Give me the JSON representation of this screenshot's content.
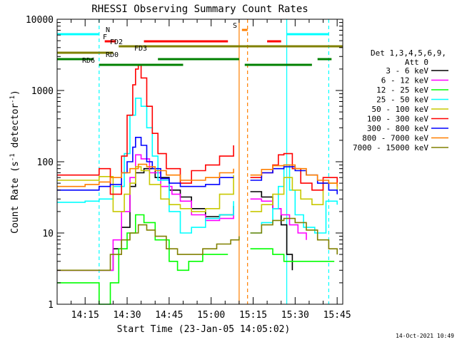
{
  "chart_data": {
    "type": "line",
    "title": "RHESSI Observing Summary Count Rates",
    "xlabel": "Start Time (23-Jan-05 14:05:02)",
    "ylabel": "Count Rate (s⁻¹ detector⁻¹)",
    "ylabel_parts": {
      "main": "Count Rate (s",
      "sup1": "-1",
      "mid": " detector",
      "sup2": "-1",
      "end": ")"
    },
    "yscale": "log",
    "xlim": [
      "14:05",
      "15:47"
    ],
    "ylim": [
      1,
      10000
    ],
    "x_ticks": [
      "14:15",
      "14:30",
      "14:45",
      "15:00",
      "15:15",
      "15:30",
      "15:45"
    ],
    "y_ticks": [
      "1",
      "10",
      "100",
      "1000",
      "10000"
    ],
    "legend_title": [
      "Det 1,3,4,5,6,9,",
      "Att 0"
    ],
    "legend_position": "right",
    "footer_date": "14-Oct-2021 10:49",
    "series": [
      {
        "name": "3 - 6 keV",
        "color": "#000000",
        "points": [
          [
            "14:05",
            3
          ],
          [
            "14:20",
            3
          ],
          [
            "14:25",
            6
          ],
          [
            "14:28",
            12
          ],
          [
            "14:31",
            45
          ],
          [
            "14:33",
            70
          ],
          [
            "14:36",
            80
          ],
          [
            "14:40",
            60
          ],
          [
            "14:45",
            40
          ],
          [
            "14:49",
            32
          ],
          [
            "14:53",
            22
          ],
          [
            "14:58",
            17
          ],
          [
            "15:03",
            18
          ],
          [
            "15:08",
            24
          ],
          [
            "15:12",
            null
          ],
          [
            "15:14",
            38
          ],
          [
            "15:18",
            32
          ],
          [
            "15:22",
            22
          ],
          [
            "15:25",
            13
          ],
          [
            "15:27",
            5
          ],
          [
            "15:29",
            3
          ],
          [
            "15:33",
            null
          ]
        ]
      },
      {
        "name": "6 - 12 keV",
        "color": "#ff00ff",
        "points": [
          [
            "14:05",
            3
          ],
          [
            "14:20",
            3
          ],
          [
            "14:25",
            8
          ],
          [
            "14:28",
            20
          ],
          [
            "14:31",
            60
          ],
          [
            "14:33",
            125
          ],
          [
            "14:35",
            110
          ],
          [
            "14:38",
            70
          ],
          [
            "14:42",
            45
          ],
          [
            "14:46",
            35
          ],
          [
            "14:49",
            28
          ],
          [
            "14:53",
            18
          ],
          [
            "14:58",
            15
          ],
          [
            "15:03",
            16
          ],
          [
            "15:08",
            22
          ],
          [
            "15:12",
            null
          ],
          [
            "15:14",
            30
          ],
          [
            "15:18",
            28
          ],
          [
            "15:22",
            22
          ],
          [
            "15:25",
            18
          ],
          [
            "15:28",
            13
          ],
          [
            "15:31",
            10
          ],
          [
            "15:34",
            8
          ],
          [
            "15:37",
            null
          ]
        ]
      },
      {
        "name": "12 - 25 keV",
        "color": "#00ff00",
        "points": [
          [
            "14:05",
            2
          ],
          [
            "14:20",
            1
          ],
          [
            "14:24",
            2
          ],
          [
            "14:27",
            6
          ],
          [
            "14:30",
            10
          ],
          [
            "14:33",
            18
          ],
          [
            "14:36",
            14
          ],
          [
            "14:40",
            8
          ],
          [
            "14:45",
            4
          ],
          [
            "14:48",
            3
          ],
          [
            "14:52",
            4
          ],
          [
            "14:57",
            5
          ],
          [
            "15:02",
            5
          ],
          [
            "15:06",
            5
          ],
          [
            "15:10",
            null
          ],
          [
            "15:14",
            6
          ],
          [
            "15:18",
            6
          ],
          [
            "15:22",
            5
          ],
          [
            "15:26",
            4
          ],
          [
            "15:30",
            4
          ],
          [
            "15:35",
            4
          ],
          [
            "15:40",
            4
          ],
          [
            "15:44",
            4
          ]
        ]
      },
      {
        "name": "25 - 50 keV",
        "color": "#00ffff",
        "points": [
          [
            "14:05",
            27
          ],
          [
            "14:15",
            28
          ],
          [
            "14:20",
            30
          ],
          [
            "14:25",
            45
          ],
          [
            "14:29",
            130
          ],
          [
            "14:31",
            450
          ],
          [
            "14:33",
            780
          ],
          [
            "14:35",
            600
          ],
          [
            "14:37",
            300
          ],
          [
            "14:39",
            120
          ],
          [
            "14:41",
            55
          ],
          [
            "14:45",
            20
          ],
          [
            "14:49",
            10
          ],
          [
            "14:53",
            12
          ],
          [
            "14:58",
            16
          ],
          [
            "15:03",
            18
          ],
          [
            "15:08",
            28
          ],
          [
            "15:11",
            null
          ],
          [
            "15:14",
            10
          ],
          [
            "15:18",
            14
          ],
          [
            "15:22",
            22
          ],
          [
            "15:24",
            45
          ],
          [
            "15:26",
            90
          ],
          [
            "15:28",
            40
          ],
          [
            "15:30",
            18
          ],
          [
            "15:33",
            12
          ],
          [
            "15:37",
            10
          ],
          [
            "15:41",
            28
          ],
          [
            "15:45",
            25
          ]
        ]
      },
      {
        "name": "50 - 100 keV",
        "color": "#c8c800",
        "points": [
          [
            "14:05",
            55
          ],
          [
            "14:15",
            55
          ],
          [
            "14:20",
            62
          ],
          [
            "14:25",
            20
          ],
          [
            "14:29",
            35
          ],
          [
            "14:31",
            50
          ],
          [
            "14:33",
            85
          ],
          [
            "14:35",
            75
          ],
          [
            "14:38",
            48
          ],
          [
            "14:42",
            30
          ],
          [
            "14:45",
            25
          ],
          [
            "14:49",
            22
          ],
          [
            "14:53",
            20
          ],
          [
            "14:58",
            22
          ],
          [
            "15:03",
            35
          ],
          [
            "15:08",
            65
          ],
          [
            "15:11",
            null
          ],
          [
            "15:14",
            20
          ],
          [
            "15:18",
            25
          ],
          [
            "15:22",
            35
          ],
          [
            "15:26",
            60
          ],
          [
            "15:29",
            40
          ],
          [
            "15:32",
            30
          ],
          [
            "15:36",
            25
          ],
          [
            "15:40",
            50
          ],
          [
            "15:45",
            40
          ]
        ]
      },
      {
        "name": "100 - 300 keV",
        "color": "#ff0000",
        "points": [
          [
            "14:05",
            65
          ],
          [
            "14:15",
            65
          ],
          [
            "14:20",
            80
          ],
          [
            "14:24",
            35
          ],
          [
            "14:28",
            120
          ],
          [
            "14:30",
            450
          ],
          [
            "14:32",
            1200
          ],
          [
            "14:33",
            2000
          ],
          [
            "14:34",
            2300
          ],
          [
            "14:35",
            1500
          ],
          [
            "14:37",
            600
          ],
          [
            "14:39",
            250
          ],
          [
            "14:41",
            130
          ],
          [
            "14:44",
            80
          ],
          [
            "14:49",
            50
          ],
          [
            "14:53",
            75
          ],
          [
            "14:58",
            90
          ],
          [
            "15:03",
            120
          ],
          [
            "15:08",
            170
          ],
          [
            "15:11",
            null
          ],
          [
            "15:14",
            60
          ],
          [
            "15:18",
            70
          ],
          [
            "15:22",
            90
          ],
          [
            "15:24",
            125
          ],
          [
            "15:26",
            130
          ],
          [
            "15:29",
            80
          ],
          [
            "15:32",
            50
          ],
          [
            "15:36",
            40
          ],
          [
            "15:40",
            60
          ],
          [
            "15:45",
            50
          ]
        ]
      },
      {
        "name": "300 - 800 keV",
        "color": "#0000ff",
        "points": [
          [
            "14:05",
            40
          ],
          [
            "14:15",
            40
          ],
          [
            "14:20",
            45
          ],
          [
            "14:24",
            48
          ],
          [
            "14:28",
            70
          ],
          [
            "14:30",
            100
          ],
          [
            "14:32",
            160
          ],
          [
            "14:33",
            220
          ],
          [
            "14:35",
            170
          ],
          [
            "14:37",
            100
          ],
          [
            "14:39",
            80
          ],
          [
            "14:42",
            58
          ],
          [
            "14:45",
            50
          ],
          [
            "14:49",
            45
          ],
          [
            "14:53",
            45
          ],
          [
            "14:58",
            48
          ],
          [
            "15:03",
            60
          ],
          [
            "15:08",
            60
          ],
          [
            "15:11",
            null
          ],
          [
            "15:14",
            55
          ],
          [
            "15:18",
            70
          ],
          [
            "15:22",
            80
          ],
          [
            "15:26",
            85
          ],
          [
            "15:30",
            75
          ],
          [
            "15:34",
            65
          ],
          [
            "15:38",
            50
          ],
          [
            "15:42",
            40
          ],
          [
            "15:45",
            35
          ]
        ]
      },
      {
        "name": "800 - 7000 keV",
        "color": "#ff7f00",
        "points": [
          [
            "14:05",
            45
          ],
          [
            "14:15",
            48
          ],
          [
            "14:20",
            52
          ],
          [
            "14:24",
            60
          ],
          [
            "14:28",
            70
          ],
          [
            "14:31",
            80
          ],
          [
            "14:34",
            92
          ],
          [
            "14:37",
            85
          ],
          [
            "14:40",
            75
          ],
          [
            "14:44",
            65
          ],
          [
            "14:49",
            55
          ],
          [
            "14:53",
            55
          ],
          [
            "14:58",
            60
          ],
          [
            "15:03",
            70
          ],
          [
            "15:08",
            80
          ],
          [
            "15:11",
            null
          ],
          [
            "15:14",
            65
          ],
          [
            "15:18",
            78
          ],
          [
            "15:22",
            88
          ],
          [
            "15:26",
            90
          ],
          [
            "15:30",
            80
          ],
          [
            "15:34",
            65
          ],
          [
            "15:38",
            55
          ],
          [
            "15:42",
            50
          ],
          [
            "15:45",
            45
          ]
        ]
      },
      {
        "name": "7000 - 15000 keV",
        "color": "#808000",
        "points": [
          [
            "14:05",
            3
          ],
          [
            "14:15",
            3
          ],
          [
            "14:20",
            3
          ],
          [
            "14:24",
            5
          ],
          [
            "14:28",
            8
          ],
          [
            "14:31",
            10
          ],
          [
            "14:34",
            13
          ],
          [
            "14:37",
            11
          ],
          [
            "14:40",
            9
          ],
          [
            "14:44",
            6
          ],
          [
            "14:48",
            5
          ],
          [
            "14:52",
            5
          ],
          [
            "14:57",
            6
          ],
          [
            "15:02",
            7
          ],
          [
            "15:07",
            8
          ],
          [
            "15:10",
            9
          ],
          [
            "15:12",
            null
          ],
          [
            "15:14",
            10
          ],
          [
            "15:18",
            13
          ],
          [
            "15:22",
            15
          ],
          [
            "15:26",
            16
          ],
          [
            "15:30",
            14
          ],
          [
            "15:34",
            11
          ],
          [
            "15:38",
            8
          ],
          [
            "15:42",
            6
          ],
          [
            "15:45",
            5
          ]
        ]
      }
    ],
    "flag_bars": [
      {
        "label": "N",
        "color": "#00ffff",
        "segments": [
          [
            "14:05",
            "14:20"
          ],
          [
            "15:27",
            "15:42"
          ]
        ]
      },
      {
        "label": "S",
        "color": "#ff7f00",
        "segments": [
          [
            "15:11",
            "15:13"
          ]
        ]
      },
      {
        "label": "F",
        "color": "#ff0000",
        "segments": [
          [
            "14:22",
            "14:26"
          ],
          [
            "14:36",
            "15:06"
          ],
          [
            "15:20",
            "15:25"
          ]
        ]
      },
      {
        "label": "FD2",
        "color": "#808000",
        "segments": [
          [
            "14:27",
            "15:47"
          ]
        ]
      },
      {
        "label": "FD3",
        "color": "#808000",
        "segments": [
          [
            "14:05",
            "14:25"
          ]
        ]
      },
      {
        "label": "RD0",
        "color": "#008000",
        "segments": [
          [
            "14:05",
            "14:18"
          ],
          [
            "14:41",
            "15:10"
          ],
          [
            "15:38",
            "15:43"
          ]
        ]
      },
      {
        "label": "RD6",
        "color": "#008000",
        "segments": [
          [
            "14:20",
            "14:50"
          ],
          [
            "15:12",
            "15:36"
          ]
        ]
      }
    ],
    "vertical_markers": [
      {
        "time": "14:20",
        "color": "#00ffff",
        "style": "dashed"
      },
      {
        "time": "15:10",
        "color": "#ff7f00",
        "style": "solid"
      },
      {
        "time": "15:13",
        "color": "#ff7f00",
        "style": "dashed"
      },
      {
        "time": "15:27",
        "color": "#00ffff",
        "style": "solid"
      },
      {
        "time": "15:42",
        "color": "#00ffff",
        "style": "dashed"
      }
    ]
  }
}
